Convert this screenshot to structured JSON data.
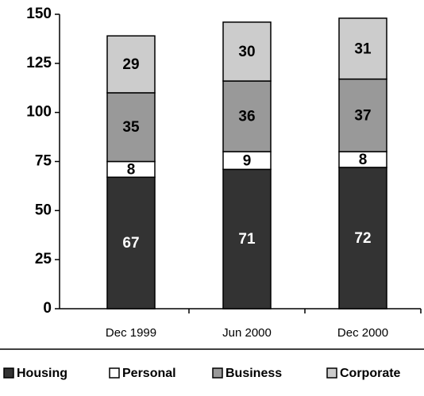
{
  "chart_data": {
    "type": "stacked_bar",
    "categories": [
      "Dec 1999",
      "Jun 2000",
      "Dec 2000"
    ],
    "series": [
      {
        "name": "Housing",
        "color": "#333333",
        "values": [
          67,
          71,
          72
        ]
      },
      {
        "name": "Personal",
        "color": "#ffffff",
        "values": [
          8,
          9,
          8
        ]
      },
      {
        "name": "Business",
        "color": "#999999",
        "values": [
          35,
          36,
          37
        ]
      },
      {
        "name": "Corporate",
        "color": "#cccccc",
        "values": [
          29,
          30,
          31
        ]
      }
    ],
    "ylim": [
      0,
      150
    ],
    "yticks": [
      0,
      25,
      50,
      75,
      100,
      125,
      150
    ],
    "grid": false,
    "legend": "bottom"
  }
}
